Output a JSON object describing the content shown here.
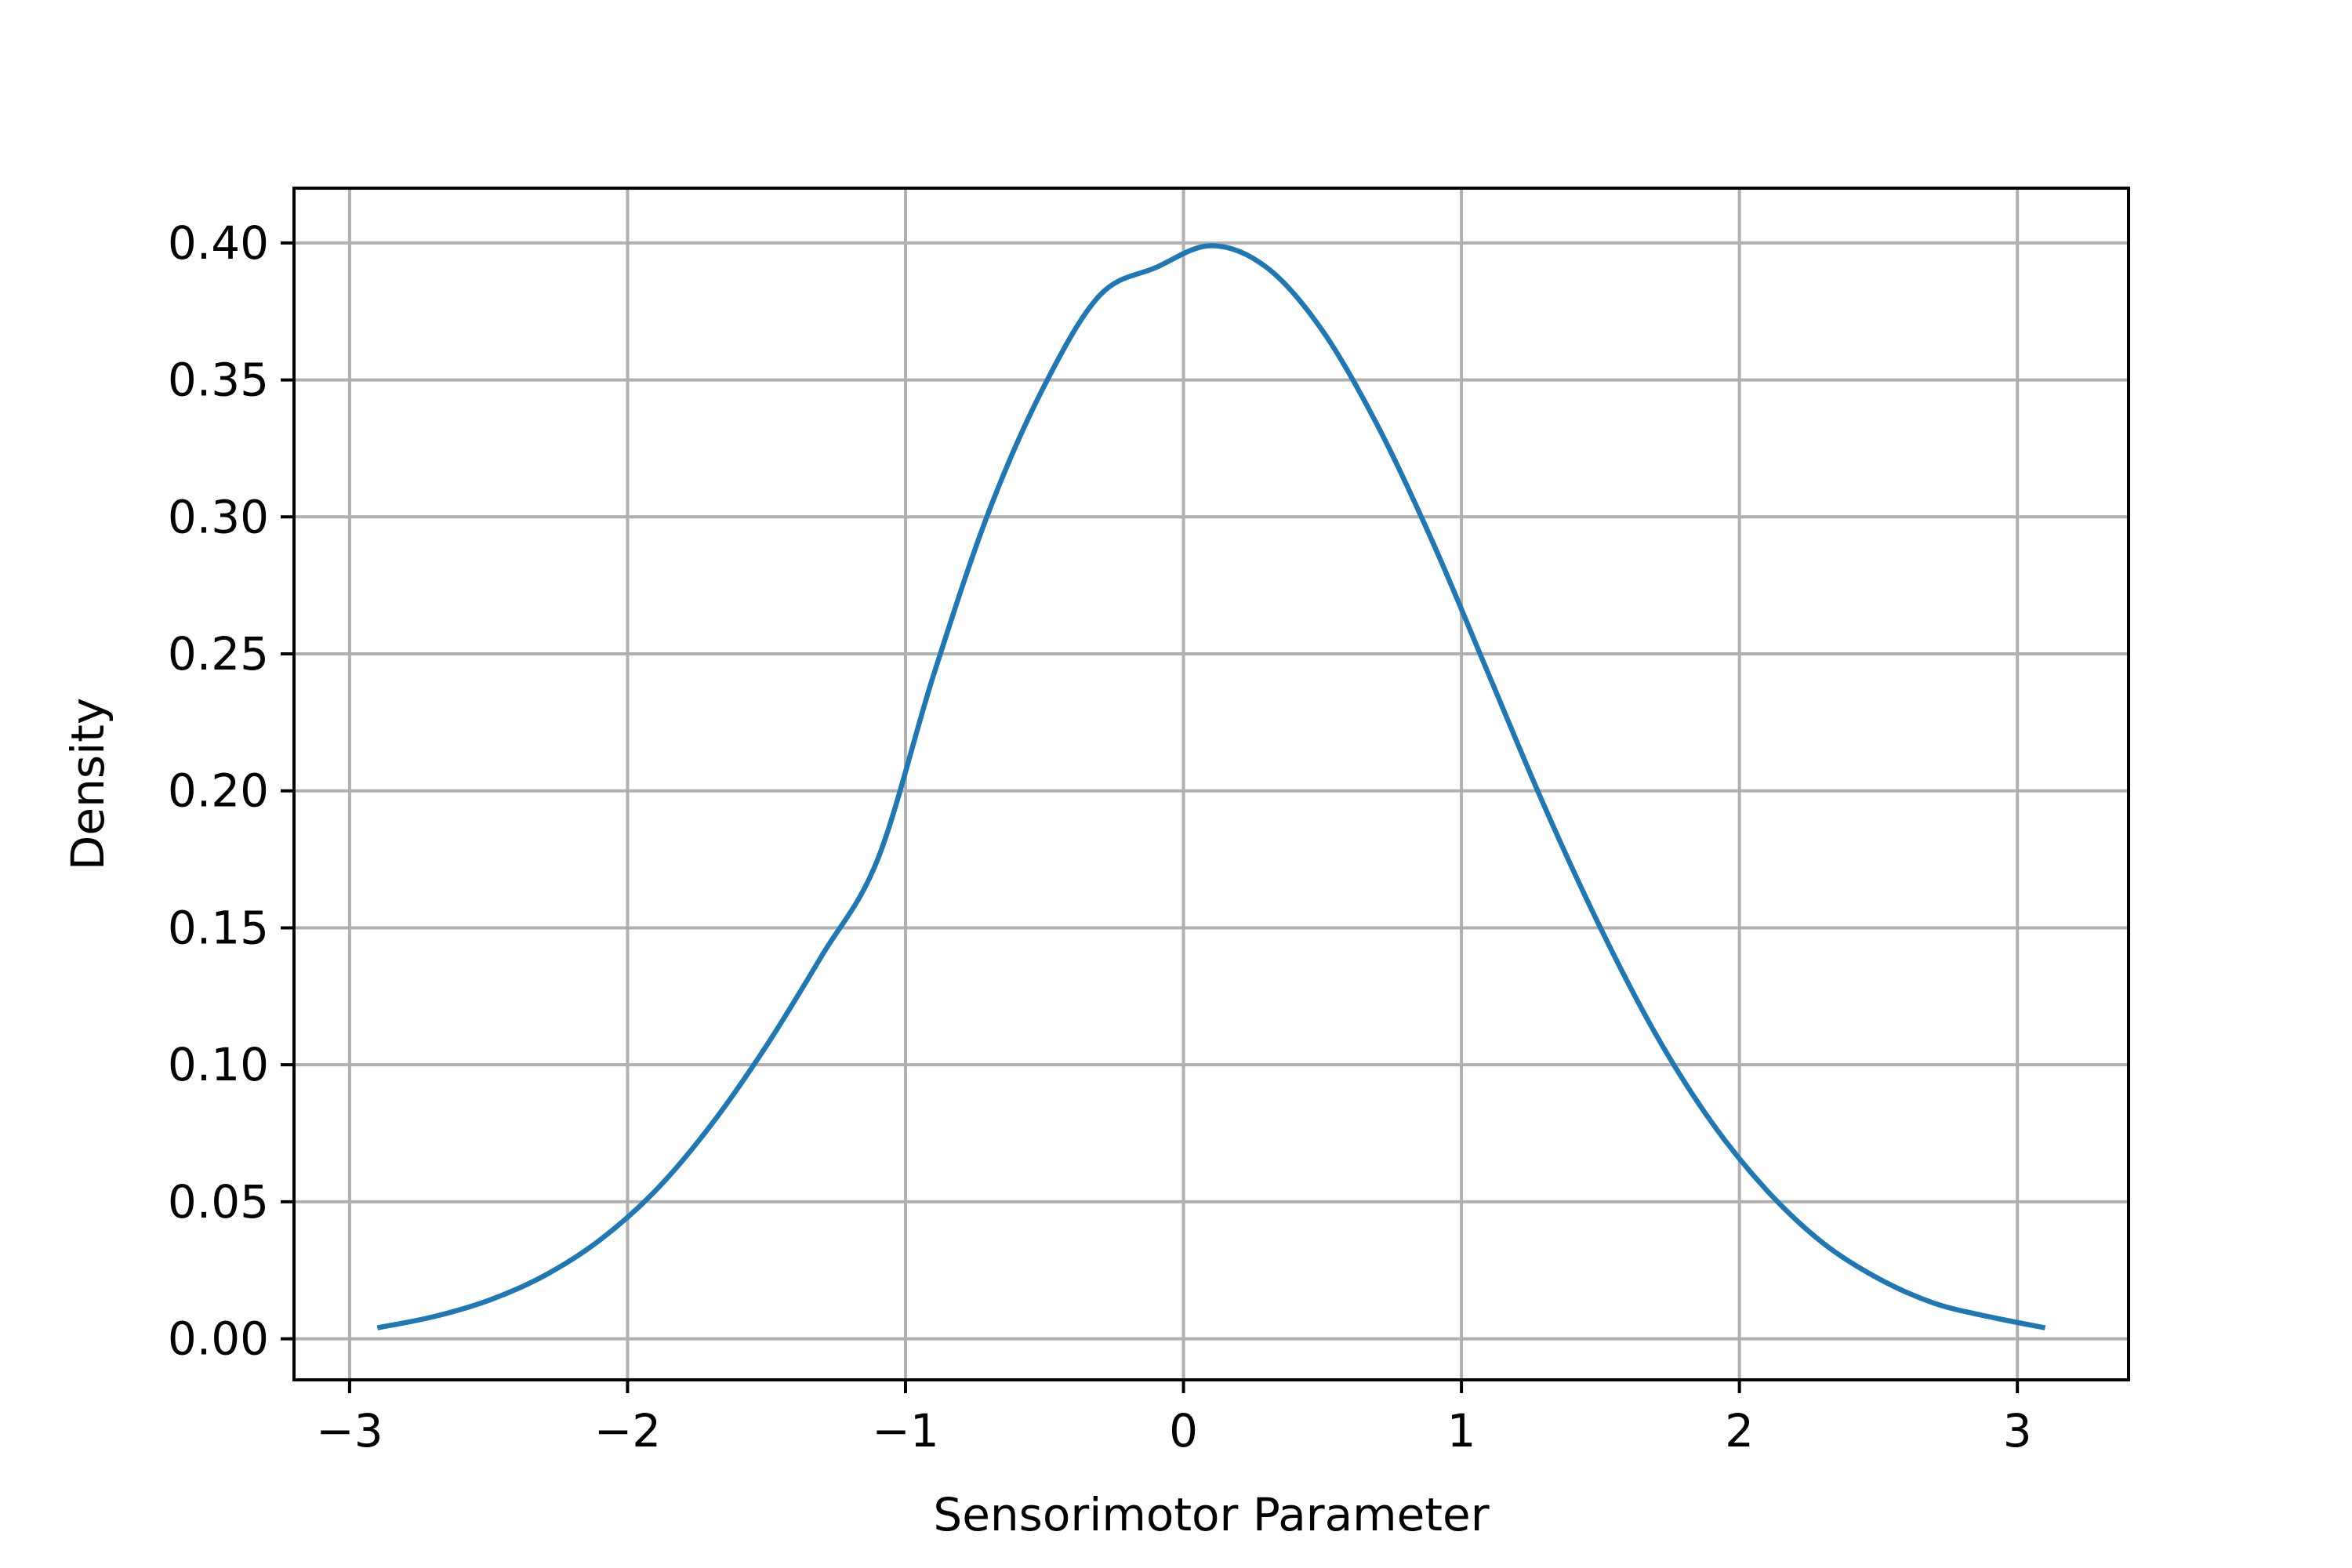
{
  "chart_data": {
    "type": "line",
    "title": "",
    "xlabel": "Sensorimotor Parameter",
    "ylabel": "Density",
    "xlim": [
      -3.2,
      3.4
    ],
    "ylim": [
      -0.015,
      0.42
    ],
    "xticks": [
      -3,
      -2,
      -1,
      0,
      1,
      2,
      3
    ],
    "xtick_labels": [
      "−3",
      "−2",
      "−1",
      "0",
      "1",
      "2",
      "3"
    ],
    "yticks": [
      0.0,
      0.05,
      0.1,
      0.15,
      0.2,
      0.25,
      0.3,
      0.35,
      0.4
    ],
    "ytick_labels": [
      "0.00",
      "0.05",
      "0.10",
      "0.15",
      "0.20",
      "0.25",
      "0.30",
      "0.35",
      "0.40"
    ],
    "grid": true,
    "legend": "none",
    "series": [
      {
        "color": "#1f77b4",
        "x": [
          -2.9,
          -2.7,
          -2.5,
          -2.3,
          -2.1,
          -1.9,
          -1.7,
          -1.5,
          -1.3,
          -1.1,
          -0.9,
          -0.7,
          -0.5,
          -0.3,
          -0.1,
          0.1,
          0.3,
          0.5,
          0.7,
          0.9,
          1.1,
          1.3,
          1.5,
          1.7,
          1.9,
          2.1,
          2.3,
          2.5,
          2.7,
          2.9,
          3.1
        ],
        "y": [
          0.004,
          0.008,
          0.014,
          0.023,
          0.036,
          0.054,
          0.078,
          0.107,
          0.14,
          0.175,
          0.242,
          0.302,
          0.348,
          0.381,
          0.391,
          0.399,
          0.391,
          0.368,
          0.333,
          0.29,
          0.242,
          0.194,
          0.15,
          0.111,
          0.079,
          0.054,
          0.035,
          0.022,
          0.013,
          0.008,
          0.004
        ]
      }
    ]
  }
}
